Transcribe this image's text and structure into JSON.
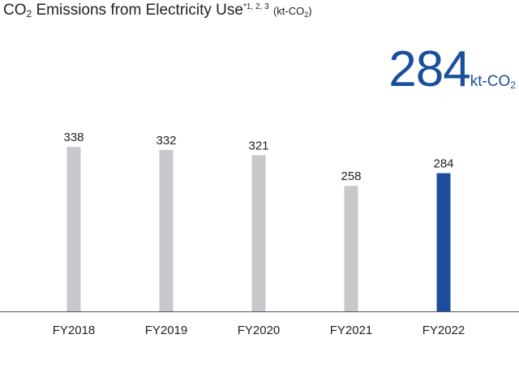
{
  "title": {
    "main": "CO",
    "sub2": "2",
    "rest": " Emissions from Electricity Use",
    "note": "*1, 2, 3",
    "unit_pre": "(kt-CO",
    "unit_sub": "2",
    "unit_post": ")"
  },
  "headline": {
    "value": "284",
    "unit_pre": "kt-CO",
    "unit_sub": "2"
  },
  "colors": {
    "highlight": "#1b4f9c",
    "bar": "#c8c8cc",
    "axis": "#555555"
  },
  "chart_data": {
    "type": "bar",
    "categories": [
      "FY2018",
      "FY2019",
      "FY2020",
      "FY2021",
      "FY2022"
    ],
    "values": [
      338,
      332,
      321,
      258,
      284
    ],
    "highlight_index": 4,
    "ylim": [
      0,
      380
    ],
    "grid": false,
    "legend": "none"
  }
}
